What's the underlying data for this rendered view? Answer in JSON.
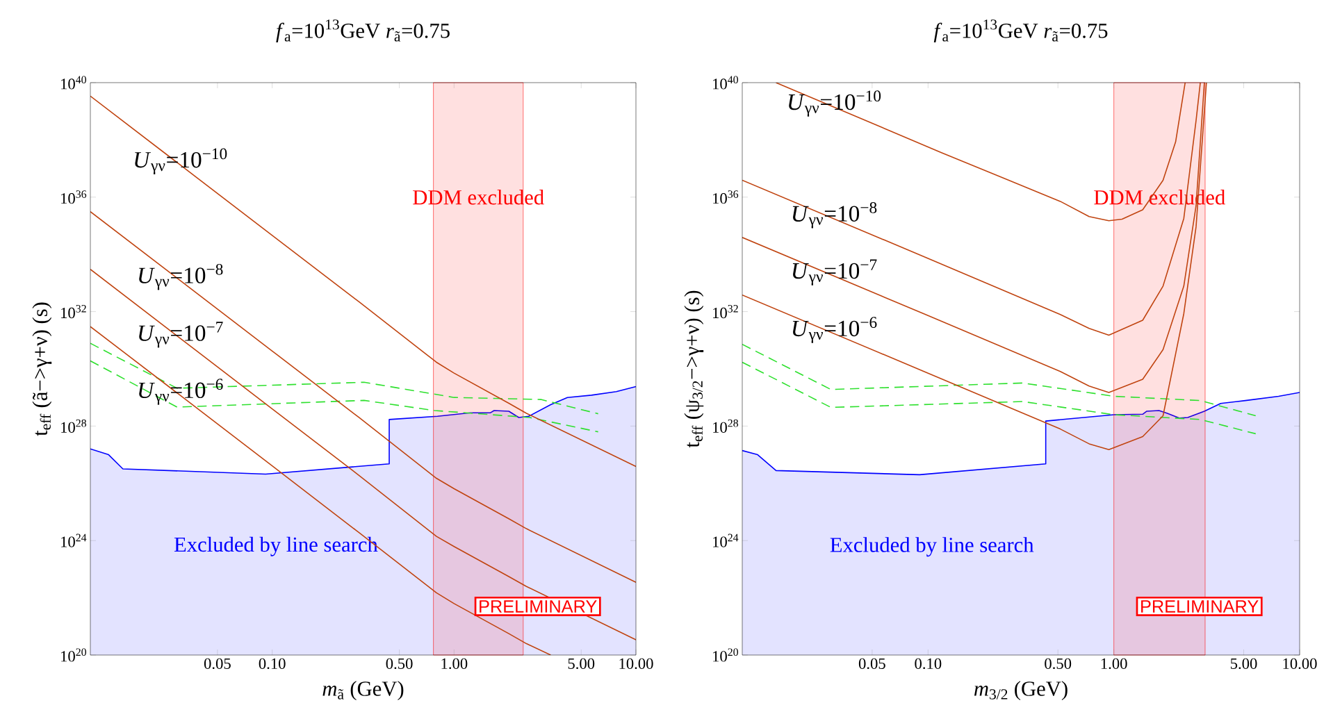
{
  "chart_data": [
    {
      "type": "line",
      "title": "*f*$_{a}$=10$^{13}$GeV     *r*$_{ã}$=0.75",
      "xlabel": "*m*$_{ã}$ (GeV)",
      "ylabel": "t$_{eff}$ (ã−>γ+ν) (s)",
      "log": "xy",
      "xlim": [
        0.01,
        10
      ],
      "ylim": [
        1e+20,
        1e+40
      ],
      "xticks": [
        {
          "value": 0.05,
          "label": "0.05"
        },
        {
          "value": 0.1,
          "label": "0.10"
        },
        {
          "value": 0.5,
          "label": "0.50"
        },
        {
          "value": 1,
          "label": "1.00"
        },
        {
          "value": 5,
          "label": "5.00"
        },
        {
          "value": 10,
          "label": "10.00"
        }
      ],
      "yticks": [
        {
          "value": 1e+20,
          "label": "10$^{20}$"
        },
        {
          "value": 1e+24,
          "label": "10$^{24}$"
        },
        {
          "value": 1e+28,
          "label": "10$^{28}$"
        },
        {
          "value": 1e+32,
          "label": "10$^{32}$"
        },
        {
          "value": 1e+36,
          "label": "10$^{36}$"
        },
        {
          "value": 1e+40,
          "label": "10$^{40}$"
        }
      ],
      "bands": [
        {
          "axis": "x",
          "from": 0.77,
          "to": 2.4,
          "label": "DDM excluded",
          "color": "#ff0000"
        }
      ],
      "series": [
        {
          "type": "area",
          "name": "Excluded by line search",
          "color": "#0000ff",
          "x": [
            0.01,
            0.0126,
            0.0151,
            0.092,
            0.44,
            0.44,
            0.81,
            1.23,
            1.58,
            1.66,
            2.0,
            2.27,
            2.57,
            3.4,
            4.2,
            5.7,
            7.8,
            10
          ],
          "values": [
            1.6e+27,
            1e+27,
            3.2e+26,
            2.1e+26,
            4.8e+26,
            1.7e+28,
            2.2e+28,
            2.9e+28,
            2.9e+28,
            3.5e+28,
            3.3e+28,
            2e+28,
            2.2e+28,
            5.6e+28,
            1e+29,
            1.2e+29,
            1.6e+29,
            2.4e+29
          ]
        },
        {
          "line_style": "dashed",
          "color": "#2ee02e",
          "x": [
            0.01,
            0.03,
            0.32,
            1.0,
            3.0,
            6.2
          ],
          "values": [
            7.8e+30,
            2.1e+29,
            3.4e+29,
            1e+29,
            8.5e+28,
            2.7e+28
          ]
        },
        {
          "line_style": "dashed",
          "color": "#2ee02e",
          "x": [
            0.01,
            0.03,
            0.32,
            0.78,
            2.6,
            6.2
          ],
          "values": [
            1.9e+30,
            4.6e+28,
            7.9e+28,
            3.5e+28,
            2e+28,
            6.3e+27
          ]
        },
        {
          "name": "*U*$_{γν}$=10$^{−10}$",
          "line_style": "solid",
          "color": "#c04410",
          "x": [
            0.01,
            0.1,
            0.3,
            0.8,
            1,
            2,
            2.5,
            10
          ],
          "values": [
            3.4e+39,
            4.6e+34,
            2.2e+32,
            1.7e+30,
            7.1e+29,
            6.3e+28,
            2.8e+28,
            3.9e+26
          ]
        },
        {
          "name": "*U*$_{γν}$=10$^{−8}$",
          "line_style": "solid",
          "color": "#c04410",
          "x": [
            0.01,
            0.1,
            0.3,
            0.8,
            1,
            2,
            2.5,
            10
          ],
          "values": [
            3.1e+35,
            4.2e+30,
            2e+28,
            1.5e+26,
            6.5e+25,
            5.8e+24,
            2.6e+24,
            3.5e+22
          ]
        },
        {
          "name": "*U*$_{γν}$=10$^{−7}$",
          "line_style": "solid",
          "color": "#c04410",
          "x": [
            0.01,
            0.1,
            0.3,
            0.8,
            1,
            2,
            2.5,
            10
          ],
          "values": [
            3e+33,
            4e+28,
            1.9e+26,
            1.4e+24,
            6.2e+23,
            5.5e+22,
            2.5e+22,
            3.4e+20
          ]
        },
        {
          "name": "*U*$_{γν}$=10$^{−6}$",
          "line_style": "solid",
          "color": "#c04410",
          "x": [
            0.01,
            0.1,
            0.3,
            0.8,
            1,
            2,
            2.5,
            3.4
          ],
          "values": [
            3e+31,
            4.1e+26,
            1.9e+24,
            1.5e+22,
            6.3e+21,
            5.6e+20,
            2.5e+20,
            1e+20
          ]
        }
      ],
      "annotations": [
        "PRELIMINARY"
      ]
    },
    {
      "type": "line",
      "title": "*f*$_{a}$=10$^{13}$GeV     *r*$_{ã}$=0.75",
      "xlabel": "*m*$_{3/2}$ (GeV)",
      "ylabel": "t$_{eff}$ (ψ$_{3/2}$−>γ+ν) (s)",
      "log": "xy",
      "xlim": [
        0.01,
        10
      ],
      "ylim": [
        1e+20,
        1e+40
      ],
      "xticks": [
        {
          "value": 0.05,
          "label": "0.05"
        },
        {
          "value": 0.1,
          "label": "0.10"
        },
        {
          "value": 0.5,
          "label": "0.50"
        },
        {
          "value": 1,
          "label": "1.00"
        },
        {
          "value": 5,
          "label": "5.00"
        },
        {
          "value": 10,
          "label": "10.00"
        }
      ],
      "yticks": [
        {
          "value": 1e+20,
          "label": "10$^{20}$"
        },
        {
          "value": 1e+24,
          "label": "10$^{24}$"
        },
        {
          "value": 1e+28,
          "label": "10$^{28}$"
        },
        {
          "value": 1e+32,
          "label": "10$^{32}$"
        },
        {
          "value": 1e+36,
          "label": "10$^{36}$"
        },
        {
          "value": 1e+40,
          "label": "10$^{40}$"
        }
      ],
      "bands": [
        {
          "axis": "x",
          "from": 1.0,
          "to": 3.1,
          "label": "DDM excluded",
          "color": "#ff0000"
        }
      ],
      "series": [
        {
          "type": "area",
          "name": "Excluded by line search",
          "color": "#0000ff",
          "x": [
            0.01,
            0.0121,
            0.0152,
            0.09,
            0.43,
            0.43,
            1.0,
            1.43,
            1.5,
            1.75,
            1.94,
            2.26,
            2.5,
            3.07,
            3.76,
            5.1,
            7.7,
            10
          ],
          "values": [
            1.4e+27,
            1e+27,
            2.8e+26,
            2e+26,
            4.8e+26,
            1.5e+28,
            2.5e+28,
            2.6e+28,
            3.3e+28,
            3.5e+28,
            2.8e+28,
            1.9e+28,
            2e+28,
            3.3e+28,
            6.2e+28,
            7.8e+28,
            1.1e+29,
            1.5e+29
          ]
        },
        {
          "line_style": "dashed",
          "color": "#2ee02e",
          "x": [
            0.01,
            0.03,
            0.323,
            1.0,
            2.92,
            5.8
          ],
          "values": [
            7.2e+30,
            1.9e+29,
            3.2e+29,
            1.1e+29,
            7.8e+28,
            2.3e+28
          ]
        },
        {
          "line_style": "dashed",
          "color": "#2ee02e",
          "x": [
            0.01,
            0.03,
            0.323,
            1.0,
            2.92,
            5.8
          ],
          "values": [
            1.7e+30,
            4.5e+28,
            7.2e+28,
            2.5e+28,
            1.7e+28,
            5.4e+27
          ]
        },
        {
          "name": "*U*$_{γν}$=10$^{−10}$",
          "line_style": "solid",
          "color": "#c04410",
          "x": [
            0.0152,
            0.118,
            0.515,
            0.736,
            0.94,
            1.107,
            1.43,
            1.84,
            2.15,
            2.42
          ],
          "values": [
            1e+40,
            3.6e+37,
            7.1e+35,
            2.1e+35,
            1.5e+35,
            1.7e+35,
            3.6e+35,
            3.9e+36,
            8.5e+37,
            1e+40
          ]
        },
        {
          "name": "*U*$_{γν}$=10$^{−8}$",
          "line_style": "solid",
          "color": "#c04410",
          "x": [
            0.01,
            0.096,
            0.515,
            0.736,
            0.94,
            1.43,
            1.84,
            2.38,
            2.77,
            2.92
          ],
          "values": [
            3.9e+36,
            8.1e+33,
            7.9e+31,
            2.6e+31,
            1.5e+31,
            5e+31,
            7.8e+32,
            1.8e+35,
            4.7e+38,
            1e+40
          ]
        },
        {
          "name": "*U*$_{γν}$=10$^{−7}$",
          "line_style": "solid",
          "color": "#c04410",
          "x": [
            0.01,
            0.096,
            0.515,
            0.736,
            0.94,
            1.43,
            1.84,
            2.38,
            2.77,
            3.07
          ],
          "values": [
            3.9e+34,
            8.1e+31,
            8.1e+29,
            2.5e+29,
            1.5e+29,
            4.3e+29,
            4.7e+30,
            7.8e+32,
            5e+35,
            1e+40
          ]
        },
        {
          "name": "*U*$_{γν}$=10$^{−6}$",
          "line_style": "solid",
          "color": "#c04410",
          "x": [
            0.01,
            0.096,
            0.515,
            0.736,
            0.94,
            1.43,
            1.84,
            2.38,
            2.77,
            3.15
          ],
          "values": [
            3.8e+32,
            7.9e+29,
            7.9e+27,
            2.4e+27,
            1.5e+27,
            4.3e+27,
            2.3e+28,
            8.5e+31,
            9.1e+34,
            1e+40
          ]
        }
      ],
      "annotations": [
        "PRELIMINARY"
      ]
    }
  ]
}
